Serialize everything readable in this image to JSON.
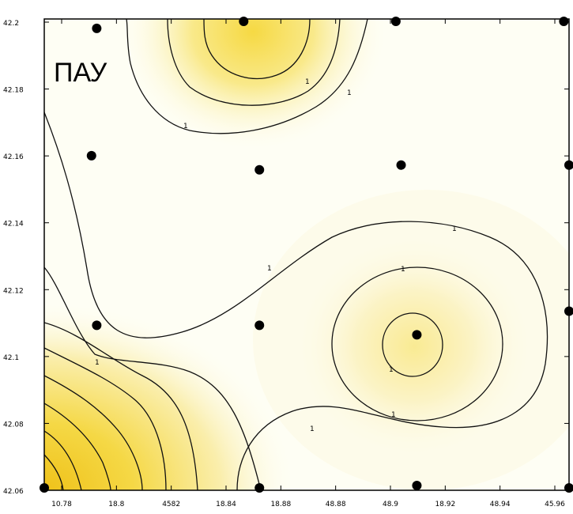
{
  "chart_data": {
    "type": "contour",
    "title": "ПАУ",
    "xlabel": "",
    "ylabel": "",
    "x_tick_labels": [
      "10.78",
      "18.8",
      "4582",
      "18.84",
      "18.88",
      "48.88",
      "48.9",
      "18.92",
      "48.94",
      "45.96"
    ],
    "y_tick_labels": [
      "42.2",
      "42.18",
      "42.16",
      "42.14",
      "42.12",
      "42.1",
      "42.08",
      "42.06"
    ],
    "contour_level_labels": [
      "1",
      "1",
      "1",
      "1",
      "1",
      "1",
      "1",
      "1",
      "1",
      "1"
    ],
    "points": [
      {
        "x": 0.1,
        "y": 0.02
      },
      {
        "x": 0.38,
        "y": 0.005
      },
      {
        "x": 0.67,
        "y": 0.005
      },
      {
        "x": 0.99,
        "y": 0.005
      },
      {
        "x": 0.09,
        "y": 0.29
      },
      {
        "x": 0.41,
        "y": 0.32
      },
      {
        "x": 0.68,
        "y": 0.31
      },
      {
        "x": 1.0,
        "y": 0.31
      },
      {
        "x": 0.1,
        "y": 0.65
      },
      {
        "x": 0.41,
        "y": 0.65
      },
      {
        "x": 0.71,
        "y": 0.67
      },
      {
        "x": 1.0,
        "y": 0.62
      },
      {
        "x": 0.0,
        "y": 0.995
      },
      {
        "x": 0.41,
        "y": 0.995
      },
      {
        "x": 0.71,
        "y": 0.99
      },
      {
        "x": 1.0,
        "y": 0.995
      }
    ],
    "colors": {
      "low": "#fefef4",
      "mid": "#fbf3b8",
      "high": "#f5d845",
      "peak": "#efc21a",
      "line": "#111111",
      "point": "#000000"
    },
    "grid": false,
    "legend": "none"
  }
}
